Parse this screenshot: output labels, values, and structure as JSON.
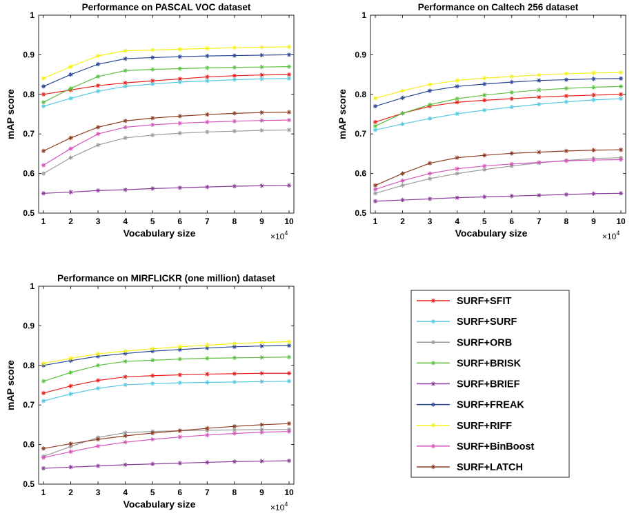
{
  "chart_data": [
    {
      "type": "line",
      "title": "Performance on PASCAL VOC dataset",
      "xlabel": "Vocabulary size",
      "ylabel": "mAP score",
      "x_multiplier": "×10",
      "x_multiplier_exp": "4",
      "xlim": [
        1,
        10
      ],
      "ylim": [
        0.5,
        1
      ],
      "x": [
        1,
        2,
        3,
        4,
        5,
        6,
        7,
        8,
        9,
        10
      ],
      "xticks": [
        "1",
        "2",
        "3",
        "4",
        "5",
        "6",
        "7",
        "8",
        "9",
        "10"
      ],
      "yticks": [
        "0.5",
        "0.6",
        "0.7",
        "0.8",
        "0.9",
        "1"
      ],
      "grid": false,
      "series": [
        {
          "name": "SURF+SFIT",
          "color": "#e8201c",
          "values": [
            0.8,
            0.811,
            0.822,
            0.829,
            0.834,
            0.839,
            0.844,
            0.847,
            0.849,
            0.85
          ]
        },
        {
          "name": "SURF+SURF",
          "color": "#54c8e0",
          "values": [
            0.77,
            0.79,
            0.808,
            0.82,
            0.826,
            0.831,
            0.834,
            0.837,
            0.839,
            0.84
          ]
        },
        {
          "name": "SURF+ORB",
          "color": "#9a9a9a",
          "values": [
            0.6,
            0.64,
            0.672,
            0.69,
            0.697,
            0.702,
            0.705,
            0.707,
            0.709,
            0.71
          ]
        },
        {
          "name": "SURF+BRISK",
          "color": "#5cc042",
          "values": [
            0.78,
            0.815,
            0.845,
            0.86,
            0.863,
            0.865,
            0.867,
            0.868,
            0.869,
            0.87
          ]
        },
        {
          "name": "SURF+BRIEF",
          "color": "#8a3a9a",
          "values": [
            0.55,
            0.553,
            0.557,
            0.559,
            0.562,
            0.564,
            0.566,
            0.568,
            0.569,
            0.57
          ]
        },
        {
          "name": "SURF+FREAK",
          "color": "#2a4696",
          "values": [
            0.82,
            0.85,
            0.876,
            0.89,
            0.893,
            0.895,
            0.897,
            0.898,
            0.899,
            0.9
          ]
        },
        {
          "name": "SURF+RIFF",
          "color": "#f5f017",
          "values": [
            0.84,
            0.87,
            0.897,
            0.91,
            0.912,
            0.914,
            0.916,
            0.918,
            0.919,
            0.92
          ]
        },
        {
          "name": "SURF+BinBoost",
          "color": "#d455b8",
          "values": [
            0.621,
            0.663,
            0.7,
            0.717,
            0.723,
            0.727,
            0.73,
            0.732,
            0.734,
            0.735
          ]
        },
        {
          "name": "SURF+LATCH",
          "color": "#8c3a22",
          "values": [
            0.657,
            0.69,
            0.717,
            0.733,
            0.74,
            0.745,
            0.749,
            0.752,
            0.754,
            0.755
          ]
        }
      ]
    },
    {
      "type": "line",
      "title": "Performance on Caltech 256 dataset",
      "xlabel": "Vocabulary size",
      "ylabel": "mAP score",
      "x_multiplier": "×10",
      "x_multiplier_exp": "4",
      "xlim": [
        1,
        10
      ],
      "ylim": [
        0.5,
        1
      ],
      "x": [
        1,
        2,
        3,
        4,
        5,
        6,
        7,
        8,
        9,
        10
      ],
      "xticks": [
        "1",
        "2",
        "3",
        "4",
        "5",
        "6",
        "7",
        "8",
        "9",
        "10"
      ],
      "yticks": [
        "0.5",
        "0.6",
        "0.7",
        "0.8",
        "0.9",
        "1"
      ],
      "grid": false,
      "series": [
        {
          "name": "SURF+SFIT",
          "color": "#e8201c",
          "values": [
            0.73,
            0.752,
            0.77,
            0.78,
            0.785,
            0.789,
            0.793,
            0.796,
            0.798,
            0.8
          ]
        },
        {
          "name": "SURF+SURF",
          "color": "#54c8e0",
          "values": [
            0.71,
            0.725,
            0.739,
            0.751,
            0.76,
            0.768,
            0.775,
            0.781,
            0.786,
            0.789
          ]
        },
        {
          "name": "SURF+ORB",
          "color": "#9a9a9a",
          "values": [
            0.55,
            0.57,
            0.587,
            0.6,
            0.61,
            0.619,
            0.627,
            0.633,
            0.638,
            0.64
          ]
        },
        {
          "name": "SURF+BRISK",
          "color": "#5cc042",
          "values": [
            0.72,
            0.752,
            0.774,
            0.789,
            0.798,
            0.805,
            0.811,
            0.815,
            0.818,
            0.82
          ]
        },
        {
          "name": "SURF+BRIEF",
          "color": "#8a3a9a",
          "values": [
            0.53,
            0.533,
            0.536,
            0.539,
            0.541,
            0.543,
            0.545,
            0.547,
            0.549,
            0.55
          ]
        },
        {
          "name": "SURF+FREAK",
          "color": "#2a4696",
          "values": [
            0.77,
            0.791,
            0.809,
            0.82,
            0.826,
            0.831,
            0.835,
            0.837,
            0.839,
            0.84
          ]
        },
        {
          "name": "SURF+RIFF",
          "color": "#f5f017",
          "values": [
            0.79,
            0.809,
            0.825,
            0.835,
            0.841,
            0.845,
            0.849,
            0.852,
            0.854,
            0.855
          ]
        },
        {
          "name": "SURF+BinBoost",
          "color": "#d455b8",
          "values": [
            0.56,
            0.582,
            0.6,
            0.612,
            0.619,
            0.624,
            0.628,
            0.632,
            0.634,
            0.635
          ]
        },
        {
          "name": "SURF+LATCH",
          "color": "#8c3a22",
          "values": [
            0.57,
            0.6,
            0.626,
            0.64,
            0.646,
            0.651,
            0.654,
            0.657,
            0.659,
            0.66
          ]
        }
      ]
    },
    {
      "type": "line",
      "title": "Performance on MIRFLICKR (one million) dataset",
      "xlabel": "Vocabulary size",
      "ylabel": "mAP score",
      "x_multiplier": "×10",
      "x_multiplier_exp": "4",
      "xlim": [
        1,
        10
      ],
      "ylim": [
        0.5,
        1
      ],
      "x": [
        1,
        2,
        3,
        4,
        5,
        6,
        7,
        8,
        9,
        10
      ],
      "xticks": [
        "1",
        "2",
        "3",
        "4",
        "5",
        "6",
        "7",
        "8",
        "9",
        "10"
      ],
      "yticks": [
        "0.5",
        "0.6",
        "0.7",
        "0.8",
        "0.9",
        "1"
      ],
      "grid": false,
      "series": [
        {
          "name": "SURF+SFIT",
          "color": "#e8201c",
          "values": [
            0.73,
            0.748,
            0.762,
            0.771,
            0.774,
            0.776,
            0.778,
            0.779,
            0.78,
            0.78
          ]
        },
        {
          "name": "SURF+SURF",
          "color": "#54c8e0",
          "values": [
            0.71,
            0.728,
            0.742,
            0.751,
            0.754,
            0.756,
            0.757,
            0.758,
            0.759,
            0.76
          ]
        },
        {
          "name": "SURF+ORB",
          "color": "#9a9a9a",
          "values": [
            0.57,
            0.595,
            0.618,
            0.63,
            0.633,
            0.635,
            0.636,
            0.637,
            0.638,
            0.638
          ]
        },
        {
          "name": "SURF+BRISK",
          "color": "#5cc042",
          "values": [
            0.76,
            0.782,
            0.8,
            0.81,
            0.813,
            0.816,
            0.818,
            0.819,
            0.82,
            0.821
          ]
        },
        {
          "name": "SURF+BRIEF",
          "color": "#8a3a9a",
          "values": [
            0.54,
            0.543,
            0.546,
            0.549,
            0.551,
            0.553,
            0.555,
            0.557,
            0.558,
            0.559
          ]
        },
        {
          "name": "SURF+FREAK",
          "color": "#2a4696",
          "values": [
            0.8,
            0.812,
            0.823,
            0.83,
            0.836,
            0.84,
            0.844,
            0.847,
            0.849,
            0.85
          ]
        },
        {
          "name": "SURF+RIFF",
          "color": "#f5f017",
          "values": [
            0.805,
            0.818,
            0.829,
            0.836,
            0.842,
            0.847,
            0.851,
            0.855,
            0.858,
            0.86
          ]
        },
        {
          "name": "SURF+BinBoost",
          "color": "#d455b8",
          "values": [
            0.567,
            0.582,
            0.596,
            0.606,
            0.613,
            0.619,
            0.624,
            0.628,
            0.631,
            0.633
          ]
        },
        {
          "name": "SURF+LATCH",
          "color": "#8c3a22",
          "values": [
            0.59,
            0.602,
            0.613,
            0.622,
            0.629,
            0.635,
            0.641,
            0.646,
            0.65,
            0.653
          ]
        }
      ]
    }
  ],
  "legend": {
    "placement": "bottom-right",
    "entries": [
      "SURF+SFIT",
      "SURF+SURF",
      "SURF+ORB",
      "SURF+BRISK",
      "SURF+BRIEF",
      "SURF+FREAK",
      "SURF+RIFF",
      "SURF+BinBoost",
      "SURF+LATCH"
    ]
  }
}
